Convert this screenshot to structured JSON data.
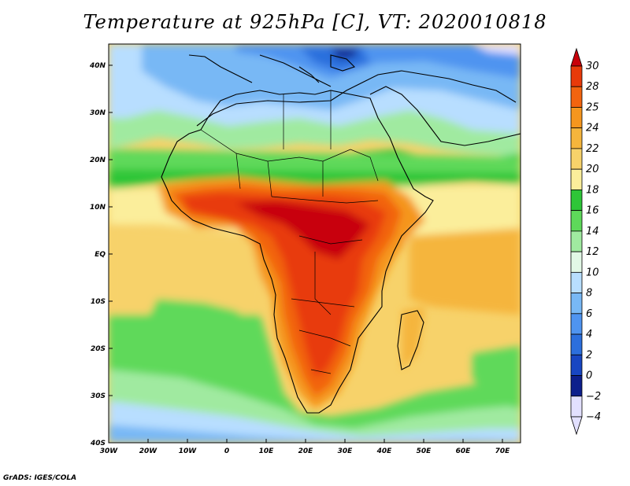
{
  "title": "Temperature at 925hPa [C], VT: 2020010818",
  "credit": "GrADS: IGES/COLA",
  "map": {
    "lat_labels": [
      "40N",
      "30N",
      "20N",
      "10N",
      "EQ",
      "10S",
      "20S",
      "30S",
      "40S"
    ],
    "lon_labels": [
      "30W",
      "20W",
      "10W",
      "0",
      "10E",
      "20E",
      "30E",
      "40E",
      "50E",
      "60E",
      "70E"
    ],
    "lon_range": [
      -30,
      75
    ],
    "lat_range": [
      -40,
      45
    ]
  },
  "colorbar": {
    "labels": [
      "30",
      "28",
      "25",
      "24",
      "22",
      "20",
      "18",
      "16",
      "14",
      "12",
      "10",
      "8",
      "6",
      "4",
      "2",
      "0",
      "−2",
      "−4"
    ],
    "colors": [
      "#c8000a",
      "#e83a0a",
      "#f2640f",
      "#f5961e",
      "#f5b53c",
      "#f7d26a",
      "#fbee9b",
      "#2ec638",
      "#5ed95a",
      "#a0eaa0",
      "#e2f8e6",
      "#b8deff",
      "#78b8f5",
      "#4f94f0",
      "#2c6fdd",
      "#1846c2",
      "#0d1f8c",
      "#e2e0ff"
    ]
  }
}
